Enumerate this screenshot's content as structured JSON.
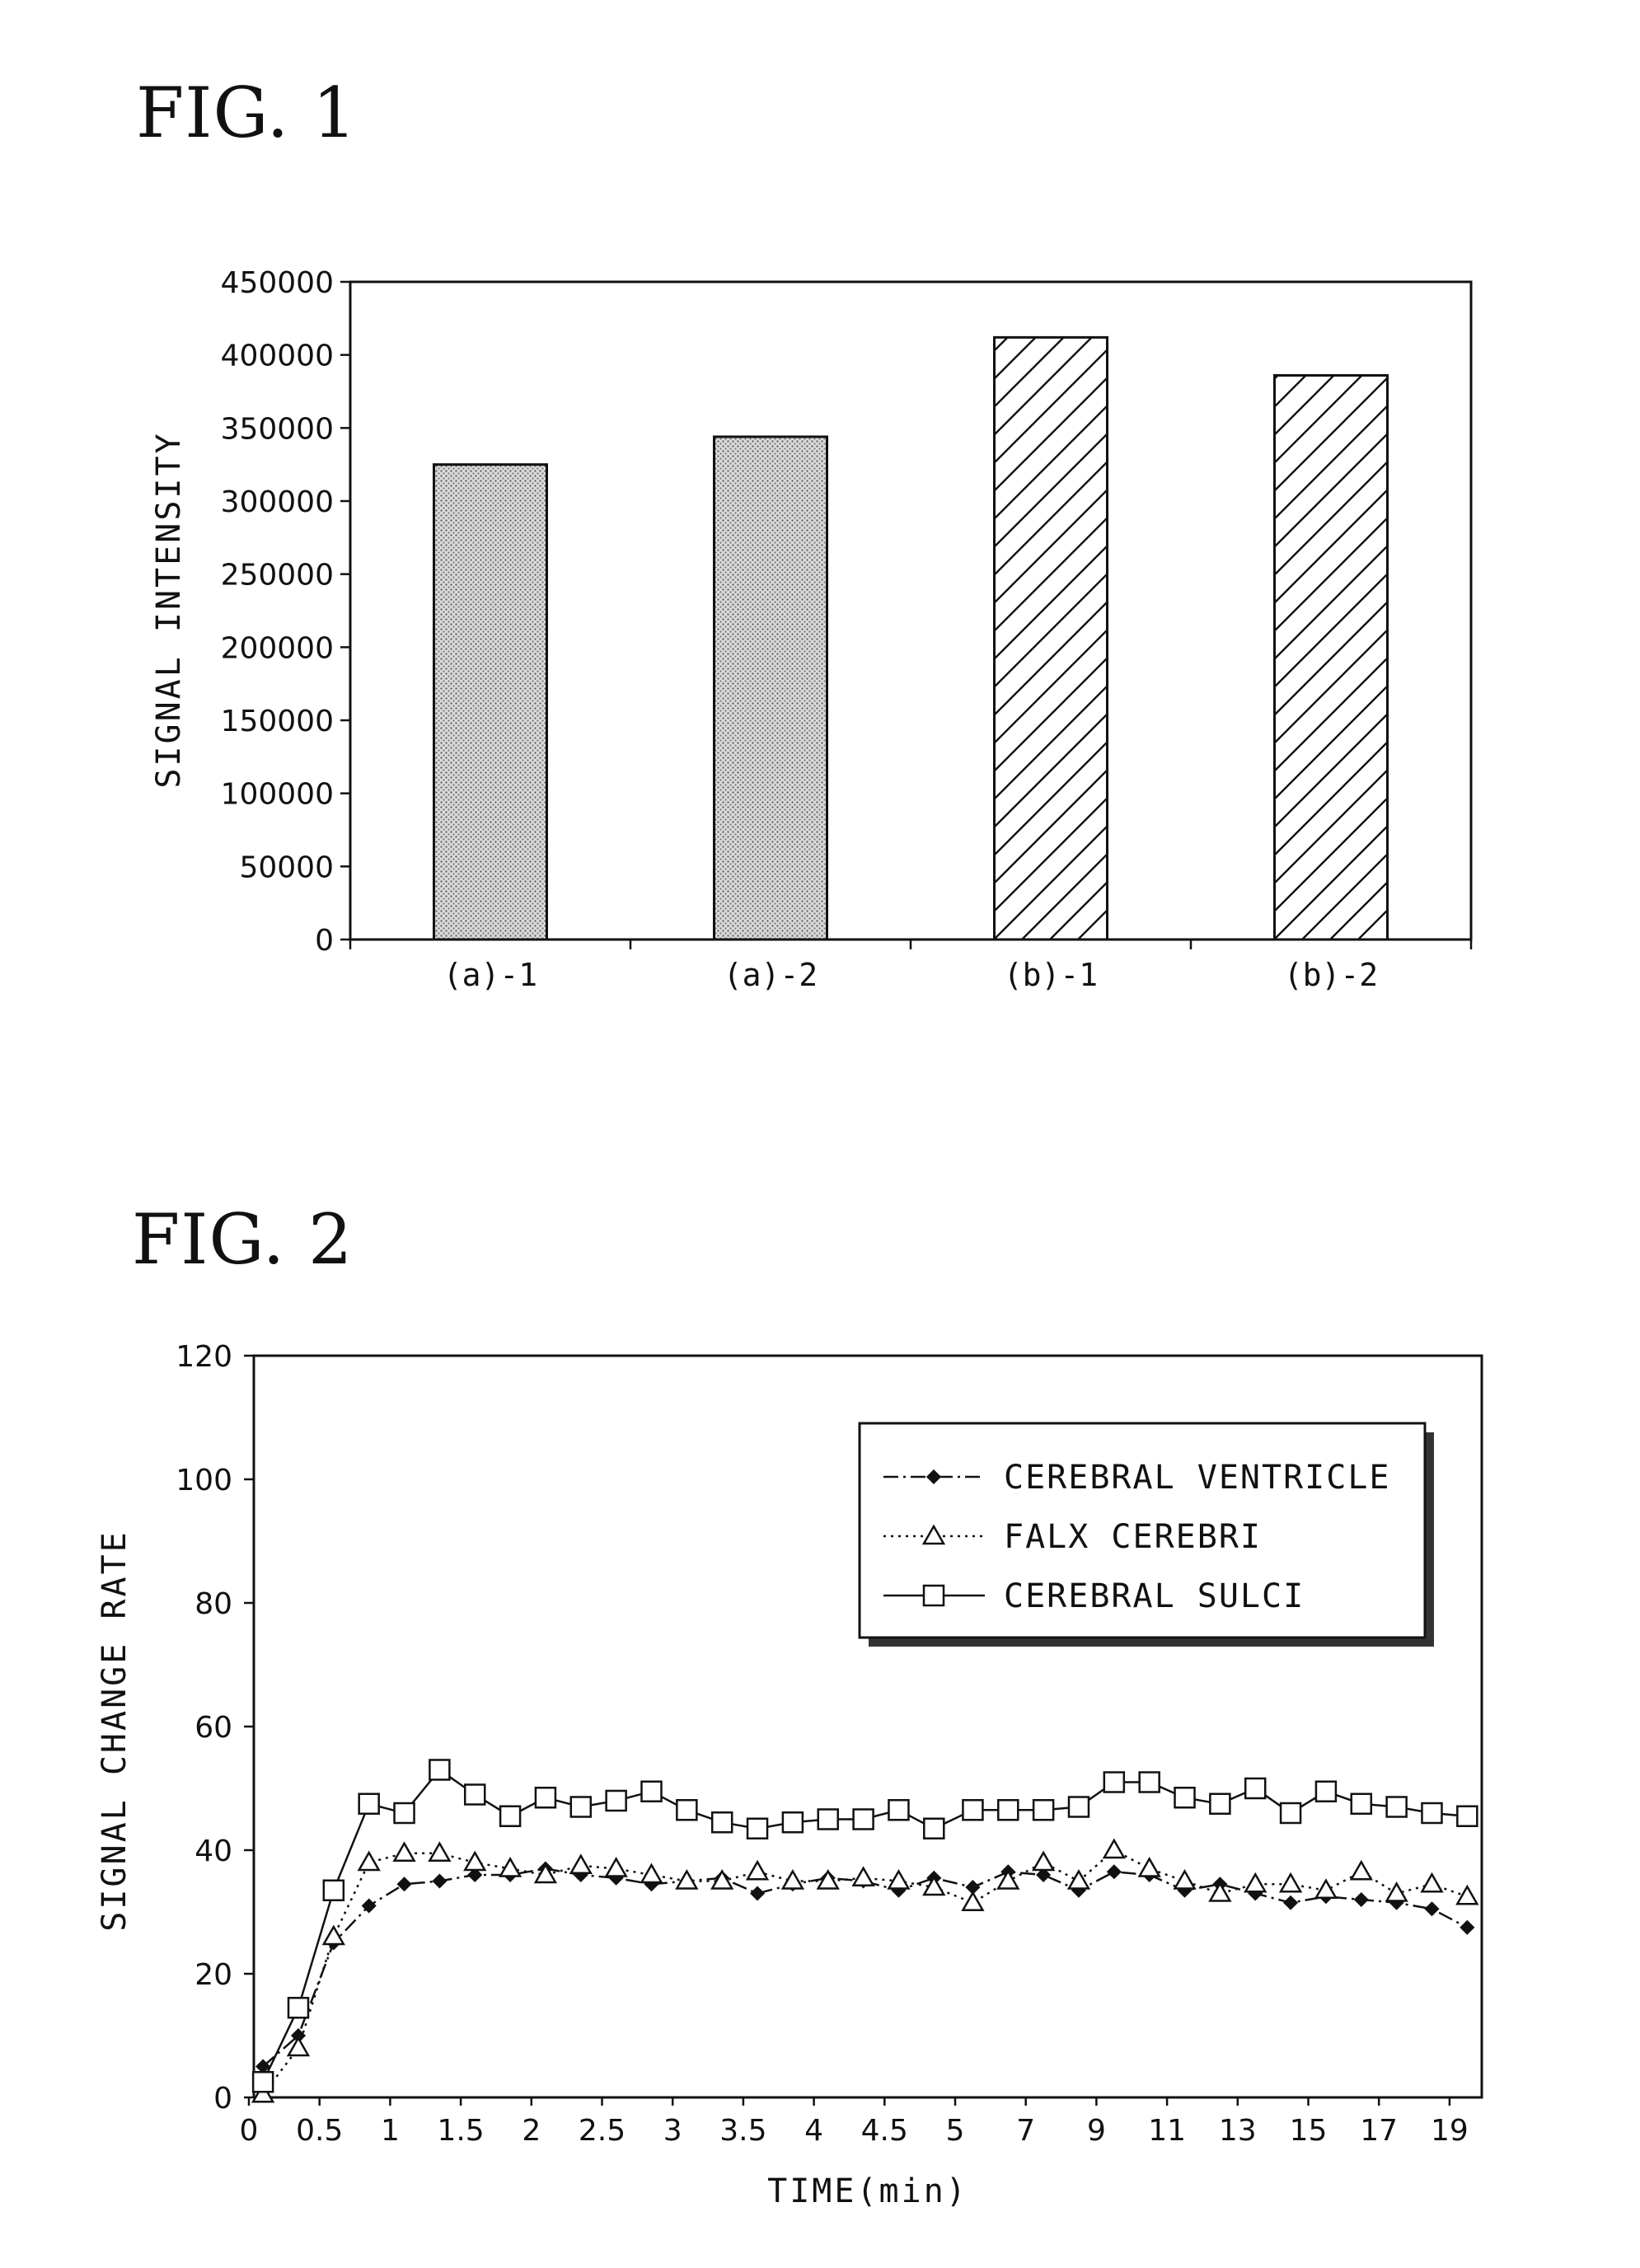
{
  "figures": {
    "fig1_title": "FIG. 1",
    "fig2_title": "FIG. 2"
  },
  "chart_data": [
    {
      "type": "bar",
      "title": "",
      "xlabel": "",
      "ylabel": "SIGNAL INTENSITY",
      "categories": [
        "(a)-1",
        "(a)-2",
        "(b)-1",
        "(b)-2"
      ],
      "values": [
        325000,
        344000,
        412000,
        386000
      ],
      "patterns": [
        "dots",
        "dots",
        "hatch",
        "hatch"
      ],
      "ylim": [
        0,
        450000
      ],
      "yticks": [
        0,
        50000,
        100000,
        150000,
        200000,
        250000,
        300000,
        350000,
        400000,
        450000
      ],
      "grid": false,
      "legend": "none"
    },
    {
      "type": "line",
      "title": "",
      "xlabel": "TIME(min)",
      "ylabel": "SIGNAL CHANGE RATE",
      "ylim": [
        0,
        120
      ],
      "yticks": [
        0,
        20,
        40,
        60,
        80,
        100,
        120
      ],
      "xtick_labels": [
        "0",
        "0.5",
        "1",
        "1.5",
        "2",
        "2.5",
        "3",
        "3.5",
        "4",
        "4.5",
        "5",
        "7",
        "9",
        "11",
        "13",
        "15",
        "17",
        "19"
      ],
      "x": [
        "0.1",
        "0.35",
        "0.6",
        "0.85",
        "1.1",
        "1.35",
        "1.6",
        "1.85",
        "2.1",
        "2.35",
        "2.6",
        "2.85",
        "3.1",
        "3.35",
        "3.6",
        "3.85",
        "4.1",
        "4.35",
        "4.6",
        "4.85",
        "5.5",
        "6.5",
        "7.5",
        "8.5",
        "9.5",
        "10.5",
        "11.5",
        "12.5",
        "13.5",
        "14.5",
        "15.5",
        "16.5",
        "17.5",
        "18.5",
        "19.5"
      ],
      "grid": false,
      "legend": "top-right",
      "series": [
        {
          "name": "CEREBRAL VENTRICLE",
          "marker": "diamond-filled",
          "line": "dash-dot",
          "values": [
            5,
            10,
            25,
            31,
            34.5,
            35,
            36,
            36,
            37,
            36,
            35.5,
            34.5,
            35,
            35.5,
            33,
            34.5,
            35.5,
            35,
            33.5,
            35.5,
            34,
            36.5,
            36,
            33.5,
            36.5,
            36,
            33.5,
            34.5,
            33,
            31.5,
            32.5,
            32,
            31.5,
            30.5,
            27.5
          ]
        },
        {
          "name": "FALX CEREBRI",
          "marker": "triangle-open",
          "line": "dotted",
          "values": [
            0.5,
            8,
            26,
            38,
            39.5,
            39.5,
            38,
            37,
            36,
            37.5,
            37,
            36,
            35,
            35,
            36.5,
            35,
            35,
            35.5,
            35,
            34,
            31.5,
            35,
            38,
            35,
            40,
            37,
            35,
            33,
            34.5,
            34.5,
            33.5,
            36.5,
            33,
            34.5,
            32.5
          ]
        },
        {
          "name": "CEREBRAL SULCI",
          "marker": "square-open",
          "line": "solid",
          "values": [
            2.5,
            14.5,
            33.5,
            47.5,
            46,
            53,
            49,
            45.5,
            48.5,
            47,
            48,
            49.5,
            46.5,
            44.5,
            43.5,
            44.5,
            45,
            45,
            46.5,
            43.5,
            46.5,
            46.5,
            46.5,
            47,
            51,
            51,
            48.5,
            47.5,
            50,
            46,
            49.5,
            47.5,
            47,
            46,
            45.5
          ]
        }
      ]
    }
  ]
}
